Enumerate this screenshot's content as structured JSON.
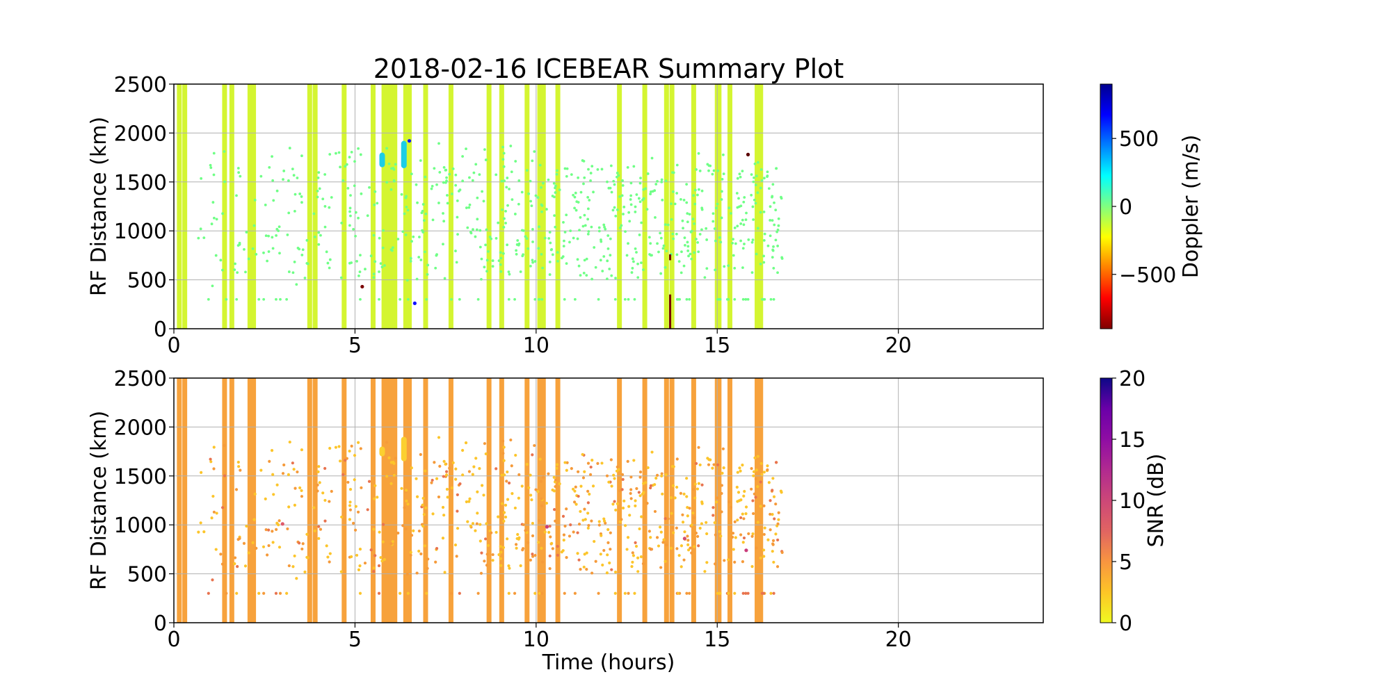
{
  "chart_data": {
    "title": "2018-02-16 ICEBEAR Summary Plot",
    "type": "scatter",
    "xlabel": "Time (hours)",
    "xlim": [
      0,
      24
    ],
    "xticks": [
      0,
      5,
      10,
      15,
      20
    ],
    "ylim": [
      0,
      2500
    ],
    "yticks": [
      0,
      500,
      1000,
      1500,
      2000,
      2500
    ],
    "grid": true,
    "vertical_bands_hours": [
      0.15,
      0.3,
      1.4,
      1.6,
      2.1,
      2.2,
      3.75,
      3.9,
      4.7,
      5.5,
      5.8,
      5.9,
      6.0,
      6.1,
      6.4,
      6.5,
      6.95,
      7.65,
      8.7,
      9.05,
      9.75,
      10.1,
      10.2,
      10.6,
      12.3,
      13.0,
      13.6,
      13.75,
      14.35,
      15.0,
      15.05,
      15.35,
      16.1,
      16.2
    ],
    "data_time_range_hours": [
      0,
      16.8
    ],
    "scatter_range_km": [
      300,
      1900
    ],
    "panels": [
      {
        "ylabel": "RF Distance (km)",
        "colorbar_label": "Doppler (m/s)",
        "colorbar_range": [
          -900,
          900
        ],
        "colorbar_ticks": [
          500,
          0,
          -500
        ],
        "colorbar_tick_labels": [
          "500",
          "0",
          "−500"
        ],
        "colormap": "jet",
        "colormap_stops": [
          "#7f0000",
          "#ff0000",
          "#ff8000",
          "#ffff00",
          "#80ff80",
          "#00ffff",
          "#0080ff",
          "#0000ff",
          "#00008f"
        ],
        "band_color": "#d4f531",
        "point_color": "#6fff86",
        "clusters": [
          {
            "t": 5.75,
            "r_min": 1650,
            "r_max": 1800,
            "color": "#1ccde6"
          },
          {
            "t": 6.35,
            "r_min": 1640,
            "r_max": 1920,
            "color": "#1ccde6"
          }
        ],
        "outliers": [
          {
            "t": 5.2,
            "r": 430,
            "color": "#7a0000"
          },
          {
            "t": 6.65,
            "r": 260,
            "color": "#1010ff"
          },
          {
            "t": 15.85,
            "r": 1780,
            "color": "#5a0000"
          },
          {
            "t": 6.5,
            "r": 1920,
            "color": "#1010ff"
          }
        ],
        "lines": [
          {
            "t": 13.7,
            "r_min": 0,
            "r_max": 350,
            "color": "#7a0000"
          },
          {
            "t": 13.7,
            "r_min": 700,
            "r_max": 760,
            "color": "#7a0000"
          }
        ]
      },
      {
        "ylabel": "RF Distance (km)",
        "colorbar_label": "SNR (dB)",
        "colorbar_range": [
          0,
          20
        ],
        "colorbar_ticks": [
          20,
          15,
          10,
          5,
          0
        ],
        "colorbar_tick_labels": [
          "20",
          "15",
          "10",
          "5",
          "0"
        ],
        "colormap": "plasma_r",
        "colormap_stops": [
          "#f0f921",
          "#fdc527",
          "#f89540",
          "#e16462",
          "#cc4778",
          "#b12a90",
          "#8f0da4",
          "#6a00a8",
          "#0d0887"
        ],
        "band_color": "#f7a23c",
        "point_color": "#f9b233",
        "clusters": [
          {
            "t": 5.75,
            "r_min": 1700,
            "r_max": 1800,
            "color": "#fbd030"
          },
          {
            "t": 6.35,
            "r_min": 1650,
            "r_max": 1900,
            "color": "#fbd030"
          }
        ],
        "outliers": [
          {
            "t": 3.0,
            "r": 1010,
            "color": "#e05a6a"
          },
          {
            "t": 10.3,
            "r": 980,
            "color": "#c93c7a"
          },
          {
            "t": 14.1,
            "r": 860,
            "color": "#d24d70"
          },
          {
            "t": 15.8,
            "r": 740,
            "color": "#c93c7a"
          }
        ],
        "lines": []
      }
    ]
  }
}
